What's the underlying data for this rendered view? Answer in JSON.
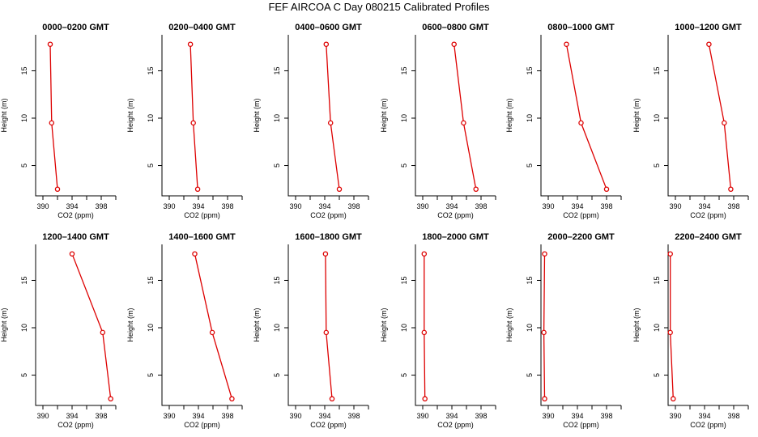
{
  "title": "FEF  AIRCOA C  Day 080215  Calibrated Profiles",
  "colors": {
    "series": "#dd0000",
    "axis": "#000000",
    "background": "#ffffff"
  },
  "chart_data": [
    {
      "type": "line",
      "title": "0000–0200 GMT",
      "xlabel": "CO2 (ppm)",
      "ylabel": "Height (m)",
      "xlim": [
        389,
        400
      ],
      "ylim": [
        1.8,
        18.8
      ],
      "xticks": [
        390,
        394,
        398
      ],
      "yticks": [
        5,
        10,
        15
      ],
      "x": [
        391.0,
        391.2,
        392.0
      ],
      "y": [
        17.8,
        9.5,
        2.5
      ]
    },
    {
      "type": "line",
      "title": "0200–0400 GMT",
      "xlabel": "CO2 (ppm)",
      "ylabel": "Height (m)",
      "xlim": [
        389,
        400
      ],
      "ylim": [
        1.8,
        18.8
      ],
      "xticks": [
        390,
        394,
        398
      ],
      "yticks": [
        5,
        10,
        15
      ],
      "x": [
        392.9,
        393.3,
        393.9
      ],
      "y": [
        17.8,
        9.5,
        2.5
      ]
    },
    {
      "type": "line",
      "title": "0400–0600 GMT",
      "xlabel": "CO2 (ppm)",
      "ylabel": "Height (m)",
      "xlim": [
        389,
        400
      ],
      "ylim": [
        1.8,
        18.8
      ],
      "xticks": [
        390,
        394,
        398
      ],
      "yticks": [
        5,
        10,
        15
      ],
      "x": [
        394.2,
        394.8,
        396.0
      ],
      "y": [
        17.8,
        9.5,
        2.5
      ]
    },
    {
      "type": "line",
      "title": "0600–0800 GMT",
      "xlabel": "CO2 (ppm)",
      "ylabel": "Height (m)",
      "xlim": [
        389,
        400
      ],
      "ylim": [
        1.8,
        18.8
      ],
      "xticks": [
        390,
        394,
        398
      ],
      "yticks": [
        5,
        10,
        15
      ],
      "x": [
        394.3,
        395.6,
        397.3
      ],
      "y": [
        17.8,
        9.5,
        2.5
      ]
    },
    {
      "type": "line",
      "title": "0800–1000 GMT",
      "xlabel": "CO2 (ppm)",
      "ylabel": "Height (m)",
      "xlim": [
        389,
        400
      ],
      "ylim": [
        1.8,
        18.8
      ],
      "xticks": [
        390,
        394,
        398
      ],
      "yticks": [
        5,
        10,
        15
      ],
      "x": [
        392.5,
        394.5,
        398.0
      ],
      "y": [
        17.8,
        9.5,
        2.5
      ]
    },
    {
      "type": "line",
      "title": "1000–1200 GMT",
      "xlabel": "CO2 (ppm)",
      "ylabel": "Height (m)",
      "xlim": [
        389,
        400
      ],
      "ylim": [
        1.8,
        18.8
      ],
      "xticks": [
        390,
        394,
        398
      ],
      "yticks": [
        5,
        10,
        15
      ],
      "x": [
        394.6,
        396.7,
        397.6
      ],
      "y": [
        17.8,
        9.5,
        2.5
      ]
    },
    {
      "type": "line",
      "title": "1200–1400 GMT",
      "xlabel": "CO2 (ppm)",
      "ylabel": "Height (m)",
      "xlim": [
        389,
        400
      ],
      "ylim": [
        1.8,
        18.8
      ],
      "xticks": [
        390,
        394,
        398
      ],
      "yticks": [
        5,
        10,
        15
      ],
      "x": [
        394.0,
        398.2,
        399.3
      ],
      "y": [
        17.8,
        9.5,
        2.5
      ]
    },
    {
      "type": "line",
      "title": "1400–1600 GMT",
      "xlabel": "CO2 (ppm)",
      "ylabel": "Height (m)",
      "xlim": [
        389,
        400
      ],
      "ylim": [
        1.8,
        18.8
      ],
      "xticks": [
        390,
        394,
        398
      ],
      "yticks": [
        5,
        10,
        15
      ],
      "x": [
        393.5,
        395.9,
        398.6
      ],
      "y": [
        17.8,
        9.5,
        2.5
      ]
    },
    {
      "type": "line",
      "title": "1600–1800 GMT",
      "xlabel": "CO2 (ppm)",
      "ylabel": "Height (m)",
      "xlim": [
        389,
        400
      ],
      "ylim": [
        1.8,
        18.8
      ],
      "xticks": [
        390,
        394,
        398
      ],
      "yticks": [
        5,
        10,
        15
      ],
      "x": [
        394.1,
        394.2,
        395.0
      ],
      "y": [
        17.8,
        9.5,
        2.5
      ]
    },
    {
      "type": "line",
      "title": "1800–2000 GMT",
      "xlabel": "CO2 (ppm)",
      "ylabel": "Height (m)",
      "xlim": [
        389,
        400
      ],
      "ylim": [
        1.8,
        18.8
      ],
      "xticks": [
        390,
        394,
        398
      ],
      "yticks": [
        5,
        10,
        15
      ],
      "x": [
        390.2,
        390.2,
        390.3
      ],
      "y": [
        17.8,
        9.5,
        2.5
      ]
    },
    {
      "type": "line",
      "title": "2000–2200 GMT",
      "xlabel": "CO2 (ppm)",
      "ylabel": "Height (m)",
      "xlim": [
        389,
        400
      ],
      "ylim": [
        1.8,
        18.8
      ],
      "xticks": [
        390,
        394,
        398
      ],
      "yticks": [
        5,
        10,
        15
      ],
      "x": [
        389.5,
        389.4,
        389.5
      ],
      "y": [
        17.8,
        9.5,
        2.5
      ]
    },
    {
      "type": "line",
      "title": "2200–2400 GMT",
      "xlabel": "CO2 (ppm)",
      "ylabel": "Height (m)",
      "xlim": [
        389,
        400
      ],
      "ylim": [
        1.8,
        18.8
      ],
      "xticks": [
        390,
        394,
        398
      ],
      "yticks": [
        5,
        10,
        15
      ],
      "x": [
        389.3,
        389.3,
        389.7
      ],
      "y": [
        17.8,
        9.5,
        2.5
      ]
    }
  ]
}
